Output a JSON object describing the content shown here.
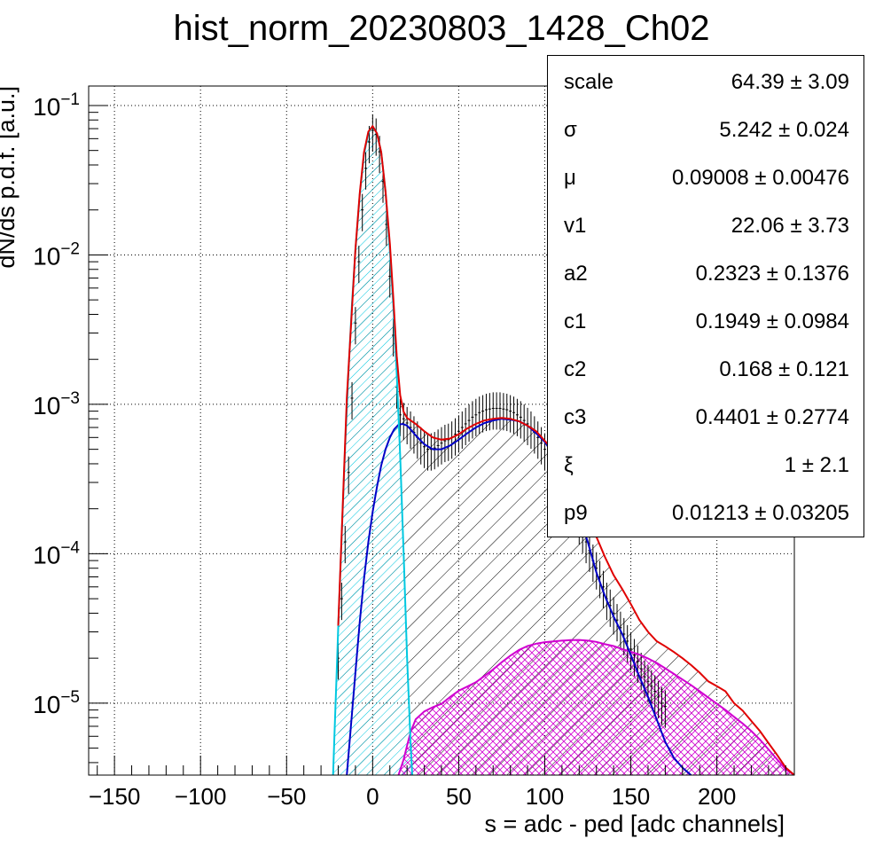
{
  "title": "hist_norm_20230803_1428_Ch02",
  "stats_box": {
    "rows": [
      {
        "name": "scale",
        "value": "64.39 ± 3.09"
      },
      {
        "name": "σ",
        "value": "5.242 ± 0.024"
      },
      {
        "name": "μ",
        "value": "0.09008 ± 0.00476"
      },
      {
        "name": "v1",
        "value": "22.06 ± 3.73"
      },
      {
        "name": "a2",
        "value": "0.2323 ± 0.1376"
      },
      {
        "name": "c1",
        "value": "0.1949 ± 0.0984"
      },
      {
        "name": "c2",
        "value": "0.168 ± 0.121"
      },
      {
        "name": "c3",
        "value": "0.4401 ± 0.2774"
      },
      {
        "name": "ξ",
        "value": "1 ± 2.1"
      },
      {
        "name": "p9",
        "value": "0.01213 ± 0.03205"
      }
    ]
  },
  "chart_data": {
    "type": "line",
    "title": "hist_norm_20230803_1428_Ch02",
    "xlabel": "s = adc - ped [adc channels]",
    "ylabel": "dN/ds p.d.f. [a.u.]",
    "xlim": [
      -165,
      245
    ],
    "ylim": [
      3.3e-06,
      0.135
    ],
    "ylog": true,
    "grid": true,
    "xticks": [
      -150,
      -100,
      -50,
      0,
      50,
      100,
      150,
      200
    ],
    "yticks": [
      1e-05,
      0.0001,
      0.001,
      0.01,
      0.1
    ],
    "ytick_labels": [
      "10^-5",
      "10^-4",
      "10^-3",
      "10^-2",
      "10^-1"
    ],
    "colors": {
      "data": "#000000",
      "total_fit": "#e00000",
      "pedestal": "#00c8e0",
      "single_pe": "#0000c8",
      "multi_pe": "#d000d0"
    },
    "series": [
      {
        "role": "data",
        "x": [
          -20,
          -18,
          -16,
          -14,
          -12,
          -10,
          -8,
          -6,
          -4,
          -2,
          0,
          2,
          4,
          6,
          8,
          10,
          12,
          14,
          16,
          18,
          20,
          22,
          24,
          26,
          28,
          30,
          32,
          34,
          36,
          38,
          40,
          42,
          44,
          46,
          48,
          50,
          52,
          54,
          56,
          58,
          60,
          62,
          64,
          66,
          68,
          70,
          72,
          74,
          76,
          78,
          80,
          82,
          84,
          86,
          88,
          90,
          92,
          94,
          96,
          98,
          100,
          102,
          104,
          106,
          108,
          110,
          112,
          114,
          116,
          118,
          120,
          122,
          124,
          126,
          128,
          130,
          132,
          134,
          136,
          138,
          140,
          142,
          144,
          146,
          148,
          150,
          152,
          154,
          156,
          158,
          160,
          162,
          164,
          166,
          168,
          170
        ],
        "y": [
          2e-05,
          5e-05,
          0.00012,
          0.00035,
          0.0011,
          0.0035,
          0.009,
          0.02,
          0.038,
          0.057,
          0.068,
          0.064,
          0.049,
          0.031,
          0.016,
          0.0072,
          0.0029,
          0.0013,
          0.00085,
          0.0008,
          0.00075,
          0.0007,
          0.00065,
          0.0006,
          0.00055,
          0.00052,
          0.0005,
          0.0005,
          0.00051,
          0.00053,
          0.00055,
          0.00057,
          0.00058,
          0.0006,
          0.00063,
          0.00066,
          0.0007,
          0.00074,
          0.00078,
          0.00082,
          0.00085,
          0.00088,
          0.0009,
          0.00092,
          0.00093,
          0.00094,
          0.00094,
          0.00094,
          0.00093,
          0.00092,
          0.0009,
          0.00088,
          0.00085,
          0.00082,
          0.00078,
          0.00074,
          0.0007,
          0.00065,
          0.0006,
          0.00055,
          0.0005,
          0.00045,
          0.0004,
          0.00036,
          0.00032,
          0.00028,
          0.00025,
          0.00022,
          0.0002,
          0.00018,
          0.00016,
          0.00014,
          0.00012,
          0.000105,
          9e-05,
          8e-05,
          7e-05,
          6e-05,
          5e-05,
          4.5e-05,
          4e-05,
          3.6e-05,
          3.2e-05,
          2.9e-05,
          2.6e-05,
          2.3e-05,
          2.1e-05,
          1.9e-05,
          1.7e-05,
          1.5e-05,
          1.4e-05,
          1.3e-05,
          1.2e-05,
          1.1e-05,
          1e-05,
          9.5e-06
        ]
      },
      {
        "role": "total_fit",
        "x": [
          -20,
          -15,
          -10,
          -7.5,
          -5,
          -2.5,
          0,
          2.5,
          5,
          7.5,
          10,
          12,
          14,
          16,
          18,
          20,
          25,
          30,
          35,
          40,
          45,
          50,
          55,
          60,
          65,
          70,
          75,
          80,
          85,
          90,
          95,
          100,
          105,
          110,
          115,
          120,
          125,
          130,
          135,
          140,
          145,
          150,
          155,
          160,
          165,
          170,
          175,
          180,
          185,
          190,
          195,
          200,
          205,
          210,
          215,
          220,
          225,
          230,
          235,
          240,
          245
        ],
        "y": [
          3.3e-05,
          0.0011,
          0.0109,
          0.0259,
          0.0488,
          0.0669,
          0.0727,
          0.0651,
          0.0487,
          0.0264,
          0.0118,
          0.0052,
          0.0021,
          0.00115,
          0.00089,
          0.00081,
          0.00074,
          0.00066,
          0.0006,
          0.00058,
          0.00059,
          0.00063,
          0.00069,
          0.00074,
          0.00078,
          0.0008,
          0.00081,
          0.0008,
          0.00077,
          0.00072,
          0.00066,
          0.00057,
          0.00049,
          0.0004,
          0.00031,
          0.00024,
          0.00018,
          0.00013,
          9.5e-05,
          7.2e-05,
          5.8e-05,
          4.6e-05,
          3.6e-05,
          3e-05,
          2.6e-05,
          2.4e-05,
          2.2e-05,
          2e-05,
          1.8e-05,
          1.6e-05,
          1.4e-05,
          1.3e-05,
          1.2e-05,
          1e-05,
          8.9e-06,
          7.6e-06,
          6.5e-06,
          5.4e-06,
          4.5e-06,
          3.7e-06,
          3.3e-06
        ]
      },
      {
        "role": "pedestal",
        "x": [
          -23,
          -22,
          -21,
          -20,
          -18,
          -16,
          -14,
          -12,
          -10,
          -7.5,
          -5,
          -2.5,
          0,
          2.5,
          5,
          7.5,
          10,
          12,
          14,
          16,
          18,
          20,
          22,
          23
        ],
        "y": [
          3.3e-06,
          7e-06,
          1.5e-05,
          3.2e-05,
          0.00013,
          0.00052,
          0.0017,
          0.0047,
          0.0107,
          0.0252,
          0.047,
          0.0655,
          0.0727,
          0.0651,
          0.0487,
          0.0264,
          0.0106,
          0.0046,
          0.0016,
          0.00045,
          0.0001,
          2e-05,
          5.5e-06,
          3.3e-06
        ]
      },
      {
        "role": "single_pe",
        "x": [
          -15,
          -12,
          -10,
          -7.5,
          -5,
          -2.5,
          0,
          2.5,
          5,
          7.5,
          10,
          12.5,
          15,
          17.5,
          20,
          22.5,
          25,
          30,
          35,
          40,
          45,
          50,
          55,
          60,
          65,
          70,
          75,
          80,
          85,
          90,
          95,
          100,
          105,
          110,
          115,
          120,
          125,
          130,
          135,
          140,
          145,
          150,
          155,
          160,
          165,
          170,
          175,
          180,
          185
        ],
        "y": [
          3.3e-06,
          8.5e-06,
          1.6e-05,
          3.5e-05,
          6.8e-05,
          0.00012,
          0.00019,
          0.00028,
          0.00039,
          0.0005,
          0.0006,
          0.00068,
          0.00073,
          0.00074,
          0.00072,
          0.00067,
          0.00062,
          0.00054,
          0.0005,
          0.0005,
          0.00053,
          0.00058,
          0.00064,
          0.0007,
          0.00075,
          0.00078,
          0.0008,
          0.00079,
          0.00077,
          0.00072,
          0.00064,
          0.00056,
          0.00046,
          0.00036,
          0.00026,
          0.00018,
          0.00012,
          7.5e-05,
          5.2e-05,
          3.8e-05,
          2.9e-05,
          2.1e-05,
          1.5e-05,
          1.1e-05,
          7.8e-06,
          5.5e-06,
          4.3e-06,
          3.7e-06,
          3.3e-06
        ]
      },
      {
        "role": "multi_pe",
        "x": [
          15,
          18,
          20,
          22,
          25,
          30,
          35,
          40,
          45,
          50,
          55,
          60,
          65,
          70,
          75,
          80,
          85,
          90,
          95,
          100,
          105,
          110,
          115,
          120,
          125,
          130,
          135,
          140,
          145,
          150,
          155,
          160,
          165,
          170,
          175,
          180,
          185,
          190,
          195,
          200,
          205,
          210,
          215,
          220,
          225,
          230,
          235,
          240,
          245
        ],
        "y": [
          3.3e-06,
          4.2e-06,
          5.2e-06,
          6.4e-06,
          7.8e-06,
          8.8e-06,
          9.4e-06,
          9.9e-06,
          1.1e-05,
          1.21e-05,
          1.29e-05,
          1.38e-05,
          1.52e-05,
          1.68e-05,
          1.88e-05,
          2.08e-05,
          2.27e-05,
          2.41e-05,
          2.5e-05,
          2.56e-05,
          2.59e-05,
          2.62e-05,
          2.64e-05,
          2.65e-05,
          2.62e-05,
          2.57e-05,
          2.48e-05,
          2.41e-05,
          2.3e-05,
          2.21e-05,
          2.11e-05,
          1.99e-05,
          1.86e-05,
          1.71e-05,
          1.57e-05,
          1.44e-05,
          1.32e-05,
          1.2e-05,
          1.09e-05,
          9.9e-06,
          9e-06,
          8.1e-06,
          7.3e-06,
          6.5e-06,
          5.7e-06,
          4.9e-06,
          4.2e-06,
          3.6e-06,
          3.3e-06
        ]
      }
    ]
  }
}
